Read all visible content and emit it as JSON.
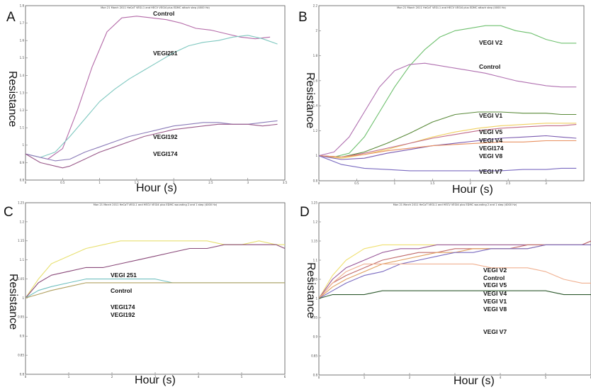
{
  "chart_data": [
    {
      "type": "line",
      "panel": "A",
      "title": "Mon 21 March 2011 HeCaT VEGI-1 and HECV VEGI4 plus EDMC attach step (4000 Hz)",
      "xlabel": "Hour (s)",
      "ylabel": "Resistance",
      "xlim": [
        0,
        3.5
      ],
      "ylim": [
        0.8,
        1.8
      ],
      "xticks": [
        "0",
        "0.5",
        "1",
        "1.5",
        "2",
        "2.5",
        "3",
        "3.5"
      ],
      "yticks": [
        "0.8",
        "0.9",
        "1",
        "1.1",
        "1.2",
        "1.3",
        "1.4",
        "1.5",
        "1.6",
        "1.7",
        "1.8"
      ],
      "series": [
        {
          "name": "Control",
          "color": "#b46aa8",
          "x": [
            0,
            0.3,
            0.5,
            0.7,
            0.9,
            1.1,
            1.3,
            1.5,
            1.7,
            1.9,
            2.1,
            2.3,
            2.5,
            2.7,
            2.9,
            3.1,
            3.3
          ],
          "y": [
            0.95,
            0.92,
            0.98,
            1.2,
            1.45,
            1.65,
            1.73,
            1.74,
            1.73,
            1.72,
            1.7,
            1.67,
            1.66,
            1.64,
            1.62,
            1.61,
            1.62
          ]
        },
        {
          "name": "VEGI251",
          "color": "#7fc8c0",
          "x": [
            0,
            0.2,
            0.4,
            0.6,
            0.8,
            1.0,
            1.2,
            1.4,
            1.6,
            1.8,
            2.0,
            2.2,
            2.4,
            2.6,
            2.8,
            3.0,
            3.2,
            3.4
          ],
          "y": [
            0.95,
            0.93,
            0.96,
            1.05,
            1.15,
            1.25,
            1.32,
            1.38,
            1.43,
            1.48,
            1.53,
            1.57,
            1.59,
            1.6,
            1.62,
            1.63,
            1.61,
            1.58
          ]
        },
        {
          "name": "VEGI192",
          "color": "#8a7ab8",
          "x": [
            0,
            0.2,
            0.4,
            0.6,
            0.8,
            1.0,
            1.2,
            1.4,
            1.6,
            1.8,
            2.0,
            2.2,
            2.4,
            2.6,
            2.8,
            3.0,
            3.2,
            3.4
          ],
          "y": [
            0.95,
            0.93,
            0.91,
            0.92,
            0.96,
            0.99,
            1.02,
            1.05,
            1.07,
            1.09,
            1.11,
            1.12,
            1.13,
            1.13,
            1.12,
            1.12,
            1.13,
            1.14
          ]
        },
        {
          "name": "VEGI174",
          "color": "#9a5a8a",
          "x": [
            0,
            0.2,
            0.4,
            0.5,
            0.6,
            0.8,
            1.0,
            1.2,
            1.4,
            1.6,
            1.8,
            2.0,
            2.2,
            2.4,
            2.6,
            2.8,
            3.0,
            3.2,
            3.4
          ],
          "y": [
            0.95,
            0.9,
            0.88,
            0.87,
            0.88,
            0.92,
            0.96,
            0.99,
            1.02,
            1.05,
            1.07,
            1.09,
            1.1,
            1.11,
            1.12,
            1.12,
            1.12,
            1.11,
            1.12
          ]
        }
      ]
    },
    {
      "type": "line",
      "panel": "B",
      "title": "Mon 21 March 2011 HeCaT VEGI-1 and HECV VEGI4 plus EDMC attach step (4000 Hz)",
      "xlabel": "Hour (s)",
      "ylabel": "Resistance",
      "xlim": [
        0,
        3.5
      ],
      "ylim": [
        0.8,
        2.2
      ],
      "xticks": [
        "0",
        "0.5",
        "1",
        "1.5",
        "2",
        "2.5",
        "3"
      ],
      "yticks": [
        "0.8",
        "1",
        "1.2",
        "1.4",
        "1.6",
        "1.8",
        "2",
        "2.2"
      ],
      "series": [
        {
          "name": "VEGI V2",
          "color": "#6ec06e",
          "x": [
            0,
            0.2,
            0.4,
            0.6,
            0.8,
            1.0,
            1.2,
            1.4,
            1.6,
            1.8,
            2.0,
            2.2,
            2.4,
            2.6,
            2.8,
            3.0,
            3.2,
            3.4
          ],
          "y": [
            1.0,
            0.99,
            1.02,
            1.15,
            1.35,
            1.55,
            1.72,
            1.85,
            1.95,
            2.0,
            2.02,
            2.04,
            2.04,
            2.0,
            1.98,
            1.93,
            1.9,
            1.9
          ]
        },
        {
          "name": "Control",
          "color": "#b070b0",
          "x": [
            0,
            0.2,
            0.4,
            0.6,
            0.8,
            1.0,
            1.2,
            1.4,
            1.6,
            1.8,
            2.0,
            2.2,
            2.4,
            2.6,
            2.8,
            3.0,
            3.2,
            3.4
          ],
          "y": [
            1.0,
            1.03,
            1.15,
            1.35,
            1.55,
            1.68,
            1.73,
            1.74,
            1.72,
            1.7,
            1.68,
            1.66,
            1.63,
            1.6,
            1.58,
            1.56,
            1.55,
            1.55
          ]
        },
        {
          "name": "VEGI V1",
          "color": "#5a8a3a",
          "x": [
            0,
            0.3,
            0.6,
            0.9,
            1.2,
            1.5,
            1.8,
            2.1,
            2.4,
            2.7,
            3.0,
            3.2,
            3.4
          ],
          "y": [
            1.0,
            0.99,
            1.03,
            1.1,
            1.18,
            1.27,
            1.33,
            1.35,
            1.35,
            1.34,
            1.34,
            1.33,
            1.33
          ]
        },
        {
          "name": "VEGI V5",
          "color": "#f0d060",
          "x": [
            0,
            0.3,
            0.6,
            0.9,
            1.2,
            1.5,
            1.8,
            2.1,
            2.4,
            2.7,
            3.0,
            3.2,
            3.4
          ],
          "y": [
            1.0,
            0.98,
            1.01,
            1.05,
            1.1,
            1.15,
            1.19,
            1.22,
            1.24,
            1.25,
            1.26,
            1.26,
            1.26
          ]
        },
        {
          "name": "VEGI V4",
          "color": "#c06a8a",
          "x": [
            0,
            0.3,
            0.6,
            0.9,
            1.2,
            1.5,
            1.8,
            2.1,
            2.4,
            2.7,
            3.0,
            3.2,
            3.4
          ],
          "y": [
            1.0,
            0.99,
            1.02,
            1.06,
            1.1,
            1.14,
            1.17,
            1.2,
            1.22,
            1.23,
            1.24,
            1.24,
            1.25
          ]
        },
        {
          "name": "VEGI174",
          "color": "#7a5ab0",
          "x": [
            0,
            0.3,
            0.6,
            0.9,
            1.2,
            1.5,
            1.8,
            2.1,
            2.4,
            2.7,
            3.0,
            3.2,
            3.4
          ],
          "y": [
            1.0,
            0.97,
            0.98,
            1.02,
            1.05,
            1.08,
            1.1,
            1.12,
            1.14,
            1.15,
            1.16,
            1.15,
            1.14
          ]
        },
        {
          "name": "VEGI V8",
          "color": "#e89060",
          "x": [
            0,
            0.3,
            0.6,
            0.9,
            1.2,
            1.5,
            1.8,
            2.1,
            2.4,
            2.7,
            3.0,
            3.2,
            3.4
          ],
          "y": [
            1.0,
            0.99,
            1.01,
            1.04,
            1.06,
            1.08,
            1.09,
            1.1,
            1.11,
            1.11,
            1.12,
            1.12,
            1.12
          ]
        },
        {
          "name": "VEGI V7",
          "color": "#7a6ac0",
          "x": [
            0,
            0.3,
            0.6,
            0.9,
            1.2,
            1.5,
            1.8,
            2.1,
            2.4,
            2.7,
            3.0,
            3.2,
            3.4
          ],
          "y": [
            1.0,
            0.93,
            0.9,
            0.89,
            0.88,
            0.88,
            0.88,
            0.88,
            0.88,
            0.89,
            0.89,
            0.9,
            0.9
          ]
        }
      ]
    },
    {
      "type": "line",
      "panel": "C",
      "title": "Mon 21 March 2011 HeCaT VEGI-1 and HECV VEGI4 plus EDMC wounding 2 and 1 step (4000 Hz)",
      "xlabel": "Hour (s)",
      "ylabel": "Resistance",
      "xlim": [
        0,
        6
      ],
      "ylim": [
        0.8,
        1.25
      ],
      "xticks": [
        "0",
        "1",
        "2",
        "3",
        "4",
        "5",
        "6"
      ],
      "yticks": [
        "0.8",
        "0.85",
        "0.9",
        "0.95",
        "1",
        "1.05",
        "1.1",
        "1.15",
        "1.2",
        "1.25"
      ],
      "series": [
        {
          "name": "VEGI 251",
          "color": "#e8e070",
          "x": [
            0,
            0.3,
            0.6,
            1.0,
            1.4,
            1.8,
            2.2,
            2.6,
            3.0,
            3.4,
            3.8,
            4.2,
            4.6,
            5.0,
            5.4,
            5.8,
            6.0
          ],
          "y": [
            1.0,
            1.05,
            1.09,
            1.11,
            1.13,
            1.14,
            1.15,
            1.15,
            1.15,
            1.15,
            1.15,
            1.15,
            1.14,
            1.14,
            1.15,
            1.14,
            1.14
          ]
        },
        {
          "name": "Control",
          "color": "#8a4a7a",
          "x": [
            0,
            0.3,
            0.6,
            1.0,
            1.4,
            1.8,
            2.2,
            2.6,
            3.0,
            3.4,
            3.8,
            4.2,
            4.6,
            5.0,
            5.4,
            5.8,
            6.0
          ],
          "y": [
            1.0,
            1.04,
            1.06,
            1.07,
            1.08,
            1.08,
            1.09,
            1.1,
            1.11,
            1.12,
            1.13,
            1.13,
            1.14,
            1.14,
            1.14,
            1.14,
            1.13
          ]
        },
        {
          "name": "VEGI174",
          "color": "#70c0c0",
          "x": [
            0,
            0.3,
            0.6,
            1.0,
            1.4,
            1.8,
            2.2,
            2.6,
            3.0,
            3.4,
            3.8,
            4.2,
            4.6,
            5.0,
            5.4,
            5.8,
            6.0
          ],
          "y": [
            1.0,
            1.02,
            1.03,
            1.04,
            1.05,
            1.05,
            1.05,
            1.05,
            1.05,
            1.04,
            1.04,
            1.04,
            1.04,
            1.04,
            1.04,
            1.04,
            1.04
          ]
        },
        {
          "name": "VEGI192",
          "color": "#b0a060",
          "x": [
            0,
            0.3,
            0.6,
            1.0,
            1.4,
            1.8,
            2.2,
            2.6,
            3.0,
            3.4,
            3.8,
            4.2,
            4.6,
            5.0,
            5.4,
            5.8,
            6.0
          ],
          "y": [
            1.0,
            1.01,
            1.02,
            1.03,
            1.04,
            1.04,
            1.04,
            1.04,
            1.04,
            1.04,
            1.04,
            1.04,
            1.04,
            1.04,
            1.04,
            1.04,
            1.04
          ]
        }
      ]
    },
    {
      "type": "line",
      "panel": "D",
      "title": "Mon 21 March 2011 HeCaT VEGI-1 and HECV VEGI4 plus EDMC wounding 2 and 1 step (4000 Hz)",
      "xlabel": "Hour (s)",
      "ylabel": "Resistance",
      "xlim": [
        0,
        6
      ],
      "ylim": [
        0.8,
        1.25
      ],
      "xticks": [
        "0",
        "1",
        "2",
        "3",
        "4",
        "5",
        "6"
      ],
      "yticks": [
        "0.8",
        "0.85",
        "0.9",
        "0.95",
        "1",
        "1.05",
        "1.1",
        "1.15",
        "1.2",
        "1.25"
      ],
      "series": [
        {
          "name": "VEGI V2",
          "color": "#f0e070",
          "x": [
            0,
            0.3,
            0.6,
            1.0,
            1.4,
            1.8,
            2.2,
            2.6,
            3.0,
            3.4,
            3.8,
            4.2,
            4.6,
            5.0,
            5.4,
            5.8,
            6.0
          ],
          "y": [
            1.0,
            1.06,
            1.1,
            1.13,
            1.14,
            1.14,
            1.14,
            1.14,
            1.14,
            1.14,
            1.14,
            1.14,
            1.14,
            1.14,
            1.14,
            1.14,
            1.14
          ]
        },
        {
          "name": "Control",
          "color": "#9a5a9a",
          "x": [
            0,
            0.3,
            0.6,
            1.0,
            1.4,
            1.8,
            2.2,
            2.6,
            3.0,
            3.4,
            3.8,
            4.2,
            4.6,
            5.0,
            5.4,
            5.8,
            6.0
          ],
          "y": [
            1.0,
            1.05,
            1.08,
            1.1,
            1.12,
            1.13,
            1.13,
            1.14,
            1.14,
            1.14,
            1.14,
            1.14,
            1.14,
            1.14,
            1.14,
            1.14,
            1.15
          ]
        },
        {
          "name": "VEGI V5",
          "color": "#c06a6a",
          "x": [
            0,
            0.3,
            0.6,
            1.0,
            1.4,
            1.8,
            2.2,
            2.6,
            3.0,
            3.4,
            3.8,
            4.2,
            4.6,
            5.0,
            5.4,
            5.8,
            6.0
          ],
          "y": [
            1.0,
            1.04,
            1.06,
            1.08,
            1.1,
            1.11,
            1.12,
            1.12,
            1.13,
            1.13,
            1.13,
            1.13,
            1.14,
            1.14,
            1.14,
            1.14,
            1.15
          ]
        },
        {
          "name": "VEGI V4",
          "color": "#e0a060",
          "x": [
            0,
            0.3,
            0.6,
            1.0,
            1.4,
            1.8,
            2.2,
            2.6,
            3.0,
            3.4,
            3.8,
            4.2,
            4.6,
            5.0,
            5.4,
            5.8,
            6.0
          ],
          "y": [
            1.0,
            1.03,
            1.05,
            1.07,
            1.09,
            1.1,
            1.11,
            1.12,
            1.12,
            1.13,
            1.13,
            1.13,
            1.13,
            1.14,
            1.14,
            1.14,
            1.14
          ]
        },
        {
          "name": "VEGI V1",
          "color": "#7a6ac0",
          "x": [
            0,
            0.3,
            0.6,
            1.0,
            1.4,
            1.8,
            2.2,
            2.6,
            3.0,
            3.4,
            3.8,
            4.2,
            4.6,
            5.0,
            5.4,
            5.8,
            6.0
          ],
          "y": [
            1.0,
            1.02,
            1.04,
            1.06,
            1.07,
            1.09,
            1.1,
            1.11,
            1.12,
            1.12,
            1.13,
            1.13,
            1.13,
            1.14,
            1.14,
            1.14,
            1.14
          ]
        },
        {
          "name": "VEGI V8",
          "color": "#f0b090",
          "x": [
            0,
            0.3,
            0.6,
            1.0,
            1.4,
            1.8,
            2.2,
            2.6,
            3.0,
            3.4,
            3.8,
            4.2,
            4.6,
            5.0,
            5.4,
            5.8,
            6.0
          ],
          "y": [
            1.0,
            1.04,
            1.07,
            1.09,
            1.09,
            1.09,
            1.09,
            1.09,
            1.09,
            1.09,
            1.08,
            1.08,
            1.08,
            1.07,
            1.05,
            1.04,
            1.04
          ]
        },
        {
          "name": "VEGI V7",
          "color": "#2e5a2e",
          "x": [
            0,
            0.3,
            0.6,
            1.0,
            1.4,
            1.8,
            2.2,
            2.6,
            3.0,
            3.4,
            3.8,
            4.2,
            4.6,
            5.0,
            5.4,
            5.8,
            6.0
          ],
          "y": [
            1.0,
            1.01,
            1.01,
            1.01,
            1.02,
            1.02,
            1.02,
            1.02,
            1.02,
            1.02,
            1.02,
            1.02,
            1.02,
            1.02,
            1.01,
            1.01,
            1.01
          ]
        }
      ]
    }
  ]
}
